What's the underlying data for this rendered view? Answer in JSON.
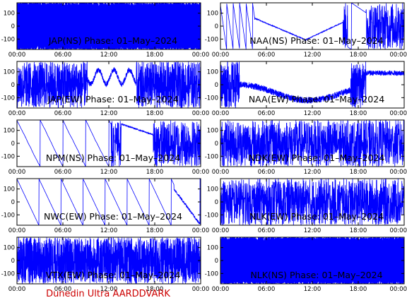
{
  "footer": {
    "text": "Dunedin Ultra AARDDVARK",
    "color": "#cc0000"
  },
  "trace_color": "#0000ff",
  "chart_data": [
    {
      "type": "line",
      "title": "JAP(NS) Phase: 01–May–2024",
      "pattern": "fill",
      "xlabels": [
        "00:00",
        "06:00",
        "12:00",
        "18:00",
        "00:00"
      ],
      "ylabels": [
        "100",
        "0",
        "-100"
      ],
      "xlim": [
        0,
        24
      ],
      "ylim": [
        -180,
        180
      ]
    },
    {
      "type": "line",
      "title": "NAA(NS) Phase: 01–May–2024",
      "pattern": "naa_ns",
      "xlabels": [
        "00:00",
        "06:00",
        "12:00",
        "18:00",
        "00:00"
      ],
      "ylabels": [
        "100",
        "0",
        "-100"
      ],
      "xlim": [
        0,
        24
      ],
      "ylim": [
        -180,
        180
      ]
    },
    {
      "type": "line",
      "title": "JAP(EW) Phase: 01–May–2024",
      "pattern": "noisy_mid",
      "xlabels": [
        "00:00",
        "06:00",
        "12:00",
        "18:00",
        "00:00"
      ],
      "ylabels": [
        "100",
        "0",
        "-100"
      ],
      "xlim": [
        0,
        24
      ],
      "ylim": [
        -180,
        180
      ]
    },
    {
      "type": "line",
      "title": "NAA(EW) Phase: 01–May–2024",
      "pattern": "naa_ew",
      "xlabels": [
        "00:00",
        "06:00",
        "12:00",
        "18:00",
        "00:00"
      ],
      "ylabels": [
        "100",
        "0",
        "-100"
      ],
      "xlim": [
        0,
        24
      ],
      "ylim": [
        -180,
        180
      ]
    },
    {
      "type": "line",
      "title": "NPM(NS) Phase: 01–May–2024",
      "pattern": "npm_ns",
      "xlabels": [
        "00:00",
        "06:00",
        "12:00",
        "18:00",
        "00:00"
      ],
      "ylabels": [
        "100",
        "0",
        "-100"
      ],
      "xlim": [
        0,
        24
      ],
      "ylim": [
        -180,
        180
      ]
    },
    {
      "type": "line",
      "title": "NDK(EW) Phase: 01–May–2024",
      "pattern": "noise",
      "xlabels": [
        "00:00",
        "06:00",
        "12:00",
        "18:00",
        "00:00"
      ],
      "ylabels": [
        "100",
        "0",
        "-100"
      ],
      "xlim": [
        0,
        24
      ],
      "ylim": [
        -180,
        180
      ]
    },
    {
      "type": "line",
      "title": "NWC(EW) Phase: 01–May–2024",
      "pattern": "nwc_ew",
      "xlabels": [
        "00:00",
        "06:00",
        "12:00",
        "18:00",
        "00:00"
      ],
      "ylabels": [
        "100",
        "0",
        "-100"
      ],
      "xlim": [
        0,
        24
      ],
      "ylim": [
        -180,
        180
      ]
    },
    {
      "type": "line",
      "title": "NLK(EW) Phase: 01–May–2024",
      "pattern": "noise",
      "xlabels": [
        "00:00",
        "06:00",
        "12:00",
        "18:00",
        "00:00"
      ],
      "ylabels": [
        "100",
        "0",
        "-100"
      ],
      "xlim": [
        0,
        24
      ],
      "ylim": [
        -180,
        180
      ]
    },
    {
      "type": "line",
      "title": "VTX(EW) Phase: 01–May–2024",
      "pattern": "vtx",
      "xlabels": [
        "00:00",
        "06:00",
        "12:00",
        "18:00",
        "00:00"
      ],
      "ylabels": [
        "100",
        "0",
        "-100"
      ],
      "xlim": [
        0,
        24
      ],
      "ylim": [
        -180,
        180
      ]
    },
    {
      "type": "line",
      "title": "NLK(NS) Phase: 01–May–2024",
      "pattern": "fill",
      "xlabels": [
        "00:00",
        "06:00",
        "12:00",
        "18:00",
        "00:00"
      ],
      "ylabels": [
        "100",
        "0",
        "-100"
      ],
      "xlim": [
        0,
        24
      ],
      "ylim": [
        -180,
        180
      ]
    }
  ]
}
